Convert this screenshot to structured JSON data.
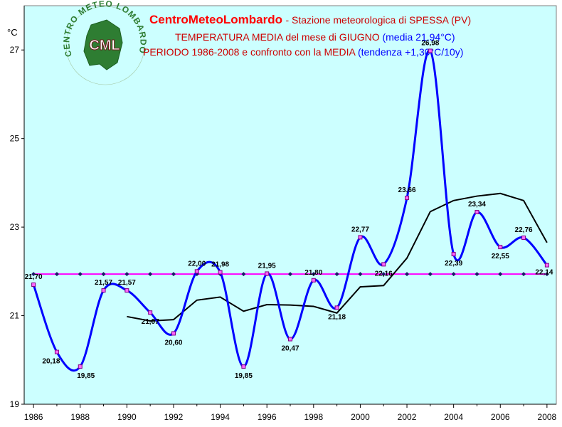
{
  "colors": {
    "plot_bg": "#ccffff",
    "series_main": "#0000ff",
    "series_trend": "#000000",
    "series_mean": "#ff00ff",
    "marker_main": "#800080",
    "title_red": "#ff0000",
    "title_blue": "#0000ff",
    "title_dark_red": "#cc0000"
  },
  "logo": {
    "text": "CML",
    "ring_text": "CENTRO METEO LOMBARDO"
  },
  "header": {
    "brand": "CentroMeteoLombardo",
    "station": " - Stazione meteorologica di SPESSA (PV)",
    "line2_red": "TEMPERATURA MEDIA del mese di GIUGNO",
    "line2_blue": " (media 21,94°C)",
    "line3_red": "PERIODO 1986-2008 e confronto con la MEDIA",
    "line3_blue": "  (tendenza +1,30°C/10y)"
  },
  "chart_data": {
    "type": "line",
    "ylabel": "°C",
    "xlim": [
      1985.6,
      2008.4
    ],
    "ylim": [
      19,
      28
    ],
    "yticks": [
      19,
      21,
      23,
      25,
      27
    ],
    "xticks": [
      1986,
      1988,
      1990,
      1992,
      1994,
      1996,
      1998,
      2000,
      2002,
      2004,
      2006,
      2008
    ],
    "grid": false,
    "series": [
      {
        "key": "main",
        "x": [
          1986,
          1987,
          1988,
          1989,
          1990,
          1991,
          1992,
          1993,
          1994,
          1995,
          1996,
          1997,
          1998,
          1999,
          2000,
          2001,
          2002,
          2003,
          2004,
          2005,
          2006,
          2007,
          2008
        ],
        "values": [
          21.7,
          20.18,
          19.85,
          21.57,
          21.57,
          21.07,
          20.6,
          22.0,
          21.98,
          19.85,
          21.95,
          20.47,
          21.8,
          21.18,
          22.77,
          22.16,
          23.66,
          26.98,
          22.39,
          23.34,
          22.55,
          22.76,
          22.14
        ],
        "labels": [
          "21,70",
          "20,18",
          "19,85",
          "21,57",
          "21,57",
          "21,07",
          "20,60",
          "22,00",
          "21,98",
          "19,85",
          "21,95",
          "20,47",
          "21,80",
          "21,18",
          "22,77",
          "22,16",
          "23,66",
          "26,98",
          "22,39",
          "23,34",
          "22,55",
          "22,76",
          "22,14"
        ]
      },
      {
        "key": "trend",
        "x": [
          1990,
          1991,
          1992,
          1993,
          1994,
          1995,
          1996,
          1997,
          1998,
          1999,
          2000,
          2001,
          2002,
          2003,
          2004,
          2005,
          2006,
          2007,
          2008
        ],
        "values": [
          20.98,
          20.88,
          20.91,
          21.35,
          21.42,
          21.1,
          21.25,
          21.24,
          21.21,
          21.06,
          21.65,
          21.68,
          22.3,
          23.35,
          23.6,
          23.7,
          23.76,
          23.6,
          22.65
        ]
      },
      {
        "key": "mean",
        "x": [
          1986,
          1987,
          1988,
          1989,
          1990,
          1991,
          1992,
          1993,
          1994,
          1995,
          1996,
          1997,
          1998,
          1999,
          2000,
          2001,
          2002,
          2003,
          2004,
          2005,
          2006,
          2007,
          2008
        ],
        "values": [
          21.94,
          21.94,
          21.94,
          21.94,
          21.94,
          21.94,
          21.94,
          21.94,
          21.94,
          21.94,
          21.94,
          21.94,
          21.94,
          21.94,
          21.94,
          21.94,
          21.94,
          21.94,
          21.94,
          21.94,
          21.94,
          21.94,
          21.94
        ]
      }
    ]
  }
}
